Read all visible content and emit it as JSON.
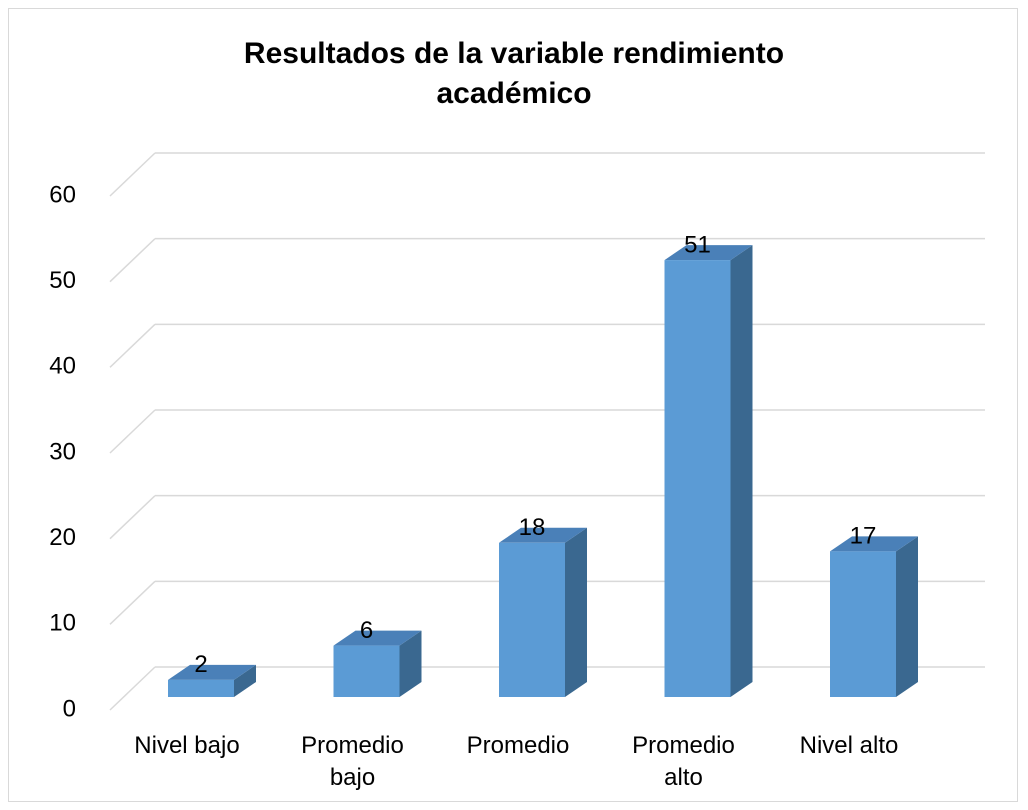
{
  "chart_data": {
    "type": "bar3d",
    "title": "Resultados de la variable rendimiento académico",
    "categories": [
      "Nivel bajo",
      "Promedio bajo",
      "Promedio",
      "Promedio alto",
      "Nivel alto"
    ],
    "values": [
      2,
      6,
      18,
      51,
      17
    ],
    "color": "#5b9bd5",
    "ylim": [
      0,
      60
    ],
    "yticks": [
      0,
      10,
      20,
      30,
      40,
      50,
      60
    ],
    "grid": true
  }
}
